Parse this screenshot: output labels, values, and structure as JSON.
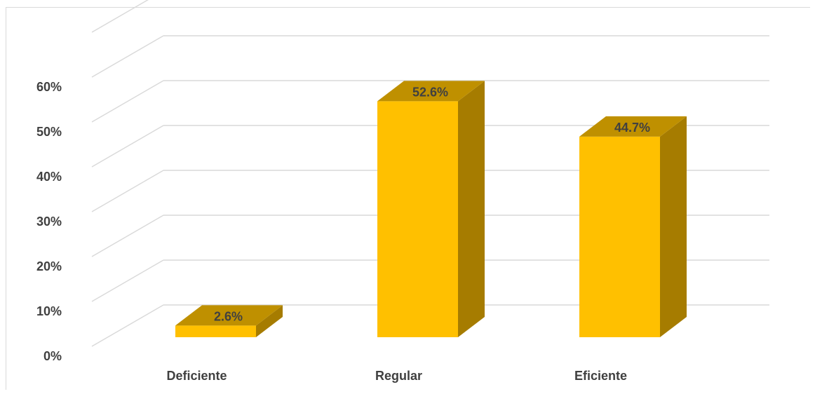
{
  "chart_data": {
    "type": "bar",
    "style": "3d-column",
    "categories": [
      "Deficiente",
      "Regular",
      "Eficiente"
    ],
    "values": [
      2.6,
      52.6,
      44.7
    ],
    "data_labels": [
      "2.6%",
      "52.6%",
      "44.7%"
    ],
    "y_ticks": [
      "0%",
      "10%",
      "20%",
      "30%",
      "40%",
      "50%",
      "60%"
    ],
    "ylim": [
      0,
      70
    ],
    "grid": true,
    "legend": "none",
    "title": "",
    "xlabel": "",
    "ylabel": ""
  },
  "colors": {
    "bar_front": "#FFC000",
    "bar_side": "#A67C00",
    "bar_top": "#BF9000",
    "grid": "#D9D9D9",
    "text": "#404040"
  }
}
